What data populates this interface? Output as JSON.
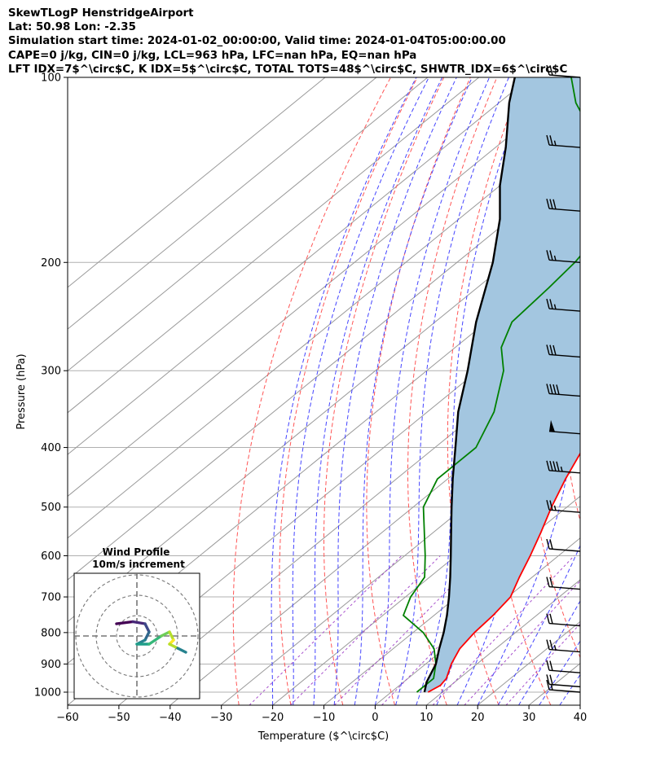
{
  "header": {
    "title": "SkewTLogP HenstridgeAirport",
    "location": "Lat: 50.98   Lon: -2.35",
    "times": "Simulation start time: 2024-01-02_00:00:00, Valid time: 2024-01-04T05:00:00.00",
    "indices1": "CAPE=0 j/kg, CIN=0 j/kg, LCL=963 hPa, LFC=nan hPa, EQ=nan hPa",
    "indices2": "LFT IDX=7$^\\circ$C, K IDX=5$^\\circ$C, TOTAL TOTS=48$^\\circ$C, SHWTR_IDX=6$^\\circ$C"
  },
  "chart_data": {
    "type": "line",
    "xlabel": "Temperature ($^\\circ$C)",
    "ylabel": "Pressure (hPa)",
    "xlim": [
      -60,
      40
    ],
    "ylim": [
      1050,
      100
    ],
    "y_scale": "log",
    "skew": true,
    "grid": true,
    "x_ticks": [
      -60,
      -50,
      -40,
      -30,
      -20,
      -10,
      0,
      10,
      20,
      30,
      40
    ],
    "y_ticks": [
      100,
      200,
      300,
      400,
      500,
      600,
      700,
      800,
      900,
      1000
    ],
    "colors": {
      "temperature": "#ff0000",
      "dewpoint": "#008000",
      "parcel": "#000000",
      "shade": "#a3c6e0",
      "dry_adiabat": "#ff5555",
      "moist_adiabat": "#4444ff",
      "isotherm": "#999999",
      "mixing_ratio": "#a64dcc"
    },
    "series": [
      {
        "key": "temperature",
        "points": [
          [
            7.2,
            1000
          ],
          [
            8.0,
            975
          ],
          [
            7.5,
            950
          ],
          [
            5.0,
            900
          ],
          [
            3.0,
            850
          ],
          [
            2.0,
            800
          ],
          [
            1.5,
            750
          ],
          [
            0.5,
            700
          ],
          [
            -2.5,
            650
          ],
          [
            -5.5,
            600
          ],
          [
            -9.0,
            550
          ],
          [
            -13.0,
            500
          ],
          [
            -17.0,
            450
          ],
          [
            -21.0,
            400
          ],
          [
            -26.0,
            350
          ],
          [
            -32.0,
            300
          ],
          [
            -37.0,
            275
          ],
          [
            -42.0,
            250
          ],
          [
            -44.0,
            240
          ],
          [
            -45.0,
            220
          ],
          [
            -45.5,
            200
          ],
          [
            -50.0,
            180
          ],
          [
            -55.0,
            160
          ],
          [
            -59.0,
            140
          ],
          [
            -63.0,
            120
          ],
          [
            -66.0,
            110
          ],
          [
            -68.0,
            100
          ]
        ]
      },
      {
        "key": "dewpoint",
        "points": [
          [
            5.0,
            1000
          ],
          [
            5.0,
            950
          ],
          [
            2.0,
            900
          ],
          [
            -2.0,
            850
          ],
          [
            -8.0,
            800
          ],
          [
            -16.0,
            750
          ],
          [
            -19.0,
            700
          ],
          [
            -21.0,
            650
          ],
          [
            -26.0,
            600
          ],
          [
            -38.0,
            500
          ],
          [
            -42.0,
            450
          ],
          [
            -42.0,
            400
          ],
          [
            -47.0,
            350
          ],
          [
            -55.0,
            300
          ],
          [
            -61.0,
            275
          ],
          [
            -65.0,
            250
          ],
          [
            -66.0,
            220
          ],
          [
            -67.0,
            200
          ],
          [
            -69.0,
            180
          ],
          [
            -74.0,
            160
          ],
          [
            -84.0,
            140
          ],
          [
            -97.0,
            120
          ],
          [
            -105.0,
            110
          ],
          [
            -112.0,
            100
          ]
        ]
      },
      {
        "key": "parcel",
        "points": [
          [
            6.5,
            1000
          ],
          [
            4.5,
            963
          ],
          [
            2.0,
            900
          ],
          [
            -1.0,
            850
          ],
          [
            -4.0,
            800
          ],
          [
            -7.5,
            750
          ],
          [
            -11.5,
            700
          ],
          [
            -16.0,
            650
          ],
          [
            -21.0,
            600
          ],
          [
            -26.5,
            550
          ],
          [
            -32.5,
            500
          ],
          [
            -39.0,
            450
          ],
          [
            -46.0,
            400
          ],
          [
            -54.0,
            350
          ],
          [
            -62.0,
            300
          ],
          [
            -72.0,
            250
          ],
          [
            -83.0,
            200
          ],
          [
            -92.0,
            170
          ],
          [
            -100.0,
            150
          ],
          [
            -108.0,
            130
          ],
          [
            -118.0,
            110
          ],
          [
            -123.0,
            100
          ]
        ]
      }
    ],
    "wind_barbs": [
      {
        "p": 100,
        "speed_kt": 20
      },
      {
        "p": 130,
        "speed_kt": 25
      },
      {
        "p": 165,
        "speed_kt": 30
      },
      {
        "p": 200,
        "speed_kt": 25
      },
      {
        "p": 240,
        "speed_kt": 25
      },
      {
        "p": 285,
        "speed_kt": 30
      },
      {
        "p": 330,
        "speed_kt": 40
      },
      {
        "p": 380,
        "speed_kt": 50
      },
      {
        "p": 440,
        "speed_kt": 45
      },
      {
        "p": 510,
        "speed_kt": 25
      },
      {
        "p": 590,
        "speed_kt": 20
      },
      {
        "p": 680,
        "speed_kt": 20
      },
      {
        "p": 780,
        "speed_kt": 20
      },
      {
        "p": 860,
        "speed_kt": 25
      },
      {
        "p": 930,
        "speed_kt": 20
      },
      {
        "p": 980,
        "speed_kt": 20
      },
      {
        "p": 1000,
        "speed_kt": 15
      }
    ],
    "inset": {
      "title": "Wind Profile",
      "subtitle": "10m/s increment",
      "rings": 3,
      "hodograph": [
        [
          -10,
          2
        ],
        [
          -6,
          2.5
        ],
        [
          -3,
          2
        ],
        [
          -2,
          0
        ],
        [
          -3,
          -2
        ],
        [
          -5,
          -3
        ],
        [
          -2,
          -3
        ],
        [
          1,
          -1
        ],
        [
          3,
          0
        ],
        [
          4,
          -2
        ],
        [
          3,
          -3
        ],
        [
          5,
          -4
        ],
        [
          7,
          -5
        ]
      ]
    }
  }
}
